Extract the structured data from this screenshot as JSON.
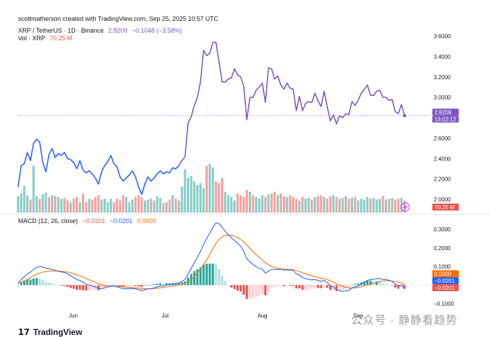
{
  "header": {
    "caption": "scottmatherson created with TradingView.com, Sep 25, 2025 10:57 UTC"
  },
  "legend": {
    "symbol": "XRP / TetherUS · 1D · Binance",
    "price": "2.8209",
    "change": "−0.1048 (−3.58%)",
    "volume_label": "Vol · XRP",
    "volume_value": "70.25 M",
    "macd_label": "MACD (12, 26, close)",
    "macd_hist": "−0.0201",
    "macd_line": "−0.0201",
    "macd_signal": "0.0000"
  },
  "colors": {
    "price_up": "#7e57c2",
    "price_down": "#2962ff",
    "vol_up": "#26a69a",
    "vol_down": "#ef5350",
    "macd_line": "#2962ff",
    "signal_line": "#ff6d00",
    "hist_up": "#26a69a",
    "hist_down": "#ef5350"
  },
  "badges": {
    "price_value": "2.8209",
    "countdown": "13:02:12",
    "volume_value": "70.25 M",
    "macd_signal": "0.0000",
    "macd_line": "−0.0201",
    "macd_hist": "−0.0201"
  },
  "footer": {
    "brand": "TradingView",
    "watermark": "公众号 · 静静看趋势"
  },
  "chart_data": [
    {
      "type": "line",
      "title": "XRP / TetherUS · 1D · Binance",
      "y_ticks": [
        "2.0000",
        "2.2000",
        "2.4000",
        "2.6000",
        "2.8000",
        "3.0000",
        "3.2000",
        "3.4000",
        "3.6000"
      ],
      "ylim": [
        1.93,
        3.68
      ],
      "x_ticks": [
        "Jun",
        "Jul",
        "Aug",
        "Sep"
      ],
      "x_tick_index": [
        18,
        48,
        79,
        110
      ],
      "last_price": 2.8209,
      "values": [
        2.12,
        2.33,
        2.35,
        2.46,
        2.38,
        2.55,
        2.59,
        2.56,
        2.36,
        2.27,
        2.44,
        2.5,
        2.41,
        2.45,
        2.43,
        2.46,
        2.4,
        2.39,
        2.36,
        2.3,
        2.38,
        2.29,
        2.26,
        2.28,
        2.25,
        2.21,
        2.15,
        2.27,
        2.33,
        2.37,
        2.43,
        2.35,
        2.32,
        2.22,
        2.18,
        2.21,
        2.24,
        2.28,
        2.22,
        2.12,
        2.05,
        2.15,
        2.22,
        2.18,
        2.21,
        2.25,
        2.28,
        2.25,
        2.27,
        2.26,
        2.31,
        2.3,
        2.33,
        2.38,
        2.42,
        2.75,
        2.81,
        2.92,
        3.0,
        3.15,
        3.46,
        3.41,
        3.43,
        3.54,
        3.54,
        3.35,
        3.15,
        3.15,
        3.18,
        3.19,
        3.28,
        3.22,
        3.2,
        3.11,
        2.78,
        3.0,
        3.0,
        3.07,
        3.1,
        3.14,
        2.95,
        3.29,
        3.28,
        3.18,
        3.21,
        3.12,
        3.08,
        3.14,
        3.09,
        3.08,
        2.87,
        3.01,
        2.87,
        2.94,
        2.96,
        2.95,
        3.04,
        2.97,
        2.91,
        3.06,
        2.91,
        2.77,
        2.83,
        2.74,
        2.82,
        2.8,
        2.84,
        2.83,
        2.96,
        2.92,
        2.97,
        3.04,
        3.08,
        3.12,
        3.02,
        3.02,
        3.06,
        3.07,
        3.0,
        3.0,
        2.97,
        2.98,
        2.86,
        2.84,
        2.93,
        2.82
      ]
    },
    {
      "type": "bar",
      "title": "Vol · XRP",
      "unit": "M XRP",
      "last_value": 70.25,
      "values": [
        95,
        110,
        155,
        100,
        75,
        270,
        95,
        80,
        105,
        115,
        90,
        100,
        95,
        90,
        80,
        85,
        70,
        60,
        80,
        90,
        60,
        110,
        60,
        80,
        75,
        90,
        100,
        75,
        80,
        60,
        80,
        60,
        80,
        70,
        100,
        90,
        60,
        75,
        90,
        100,
        90,
        70,
        75,
        80,
        70,
        95,
        85,
        55,
        60,
        75,
        100,
        80,
        70,
        150,
        250,
        200,
        210,
        180,
        160,
        170,
        140,
        270,
        280,
        260,
        180,
        170,
        200,
        120,
        100,
        90,
        70,
        110,
        100,
        90,
        130,
        120,
        100,
        90,
        80,
        100,
        90,
        105,
        110,
        120,
        100,
        110,
        95,
        90,
        100,
        90,
        80,
        70,
        90,
        80,
        85,
        75,
        90,
        95,
        100,
        90,
        80,
        95,
        100,
        90,
        80,
        85,
        95,
        80,
        85,
        90,
        70,
        80,
        75,
        90,
        80,
        85,
        75,
        80,
        95,
        75,
        80,
        85,
        75,
        80,
        85,
        70
      ],
      "up": [
        1,
        1,
        1,
        1,
        0,
        1,
        1,
        0,
        1,
        1,
        0,
        1,
        0,
        1,
        1,
        0,
        0,
        1,
        0,
        0,
        1,
        0,
        0,
        1,
        0,
        0,
        0,
        1,
        1,
        1,
        1,
        0,
        0,
        0,
        0,
        1,
        1,
        1,
        0,
        0,
        0,
        1,
        1,
        0,
        1,
        1,
        1,
        0,
        1,
        0,
        1,
        0,
        1,
        1,
        1,
        1,
        1,
        1,
        1,
        1,
        1,
        0,
        1,
        1,
        0,
        0,
        0,
        1,
        1,
        1,
        1,
        0,
        0,
        0,
        0,
        1,
        0,
        1,
        1,
        1,
        0,
        1,
        0,
        0,
        1,
        0,
        0,
        1,
        0,
        0,
        0,
        1,
        0,
        1,
        1,
        0,
        1,
        0,
        0,
        1,
        0,
        0,
        1,
        0,
        1,
        0,
        1,
        0,
        1,
        0,
        1,
        1,
        1,
        1,
        0,
        1,
        1,
        1,
        0,
        1,
        0,
        1,
        0,
        0,
        1,
        0
      ]
    },
    {
      "type": "line",
      "title": "MACD (12, 26, close)",
      "y_ticks": [
        "−0.1000",
        "0.1000",
        "0.2000",
        "0.3000"
      ],
      "ylim": [
        -0.13,
        0.37
      ],
      "series": [
        {
          "name": "MACD",
          "last": -0.0201,
          "values": [
            0.01,
            0.03,
            0.045,
            0.06,
            0.07,
            0.085,
            0.095,
            0.1,
            0.098,
            0.09,
            0.088,
            0.085,
            0.08,
            0.075,
            0.07,
            0.068,
            0.06,
            0.05,
            0.04,
            0.03,
            0.025,
            0.015,
            0.005,
            0.0,
            -0.005,
            -0.01,
            -0.02,
            -0.02,
            -0.015,
            -0.01,
            -0.005,
            -0.005,
            -0.01,
            -0.015,
            -0.02,
            -0.02,
            -0.02,
            -0.018,
            -0.02,
            -0.025,
            -0.03,
            -0.025,
            -0.02,
            -0.02,
            -0.015,
            -0.01,
            -0.005,
            -0.005,
            0.0,
            0.002,
            0.005,
            0.008,
            0.012,
            0.02,
            0.03,
            0.06,
            0.09,
            0.12,
            0.15,
            0.18,
            0.22,
            0.25,
            0.28,
            0.31,
            0.335,
            0.33,
            0.31,
            0.29,
            0.27,
            0.255,
            0.24,
            0.225,
            0.21,
            0.18,
            0.14,
            0.125,
            0.11,
            0.1,
            0.09,
            0.085,
            0.065,
            0.075,
            0.085,
            0.085,
            0.085,
            0.085,
            0.08,
            0.082,
            0.08,
            0.078,
            0.06,
            0.055,
            0.04,
            0.035,
            0.03,
            0.028,
            0.03,
            0.025,
            0.02,
            0.025,
            0.015,
            -0.005,
            -0.01,
            -0.025,
            -0.03,
            -0.035,
            -0.03,
            -0.03,
            -0.015,
            -0.01,
            -0.005,
            0.005,
            0.015,
            0.025,
            0.03,
            0.03,
            0.035,
            0.035,
            0.03,
            0.03,
            0.025,
            0.02,
            0.005,
            -0.005,
            0.0,
            -0.0201
          ]
        },
        {
          "name": "Signal",
          "last": 0.0,
          "values": [
            0.01,
            0.015,
            0.02,
            0.03,
            0.04,
            0.05,
            0.058,
            0.065,
            0.07,
            0.073,
            0.075,
            0.076,
            0.076,
            0.075,
            0.074,
            0.072,
            0.07,
            0.066,
            0.06,
            0.055,
            0.05,
            0.043,
            0.035,
            0.028,
            0.021,
            0.015,
            0.008,
            0.002,
            -0.003,
            -0.005,
            -0.006,
            -0.006,
            -0.007,
            -0.008,
            -0.01,
            -0.012,
            -0.013,
            -0.014,
            -0.015,
            -0.017,
            -0.019,
            -0.02,
            -0.02,
            -0.02,
            -0.019,
            -0.017,
            -0.015,
            -0.013,
            -0.01,
            -0.008,
            -0.005,
            -0.002,
            0.001,
            0.005,
            0.01,
            0.02,
            0.03,
            0.045,
            0.065,
            0.085,
            0.11,
            0.135,
            0.165,
            0.195,
            0.225,
            0.245,
            0.26,
            0.268,
            0.27,
            0.268,
            0.262,
            0.255,
            0.245,
            0.232,
            0.215,
            0.198,
            0.18,
            0.163,
            0.148,
            0.135,
            0.12,
            0.11,
            0.1,
            0.095,
            0.09,
            0.088,
            0.086,
            0.085,
            0.084,
            0.083,
            0.078,
            0.073,
            0.066,
            0.06,
            0.054,
            0.049,
            0.045,
            0.041,
            0.037,
            0.034,
            0.03,
            0.022,
            0.015,
            0.007,
            0.0,
            -0.007,
            -0.012,
            -0.016,
            -0.016,
            -0.015,
            -0.013,
            -0.009,
            -0.004,
            0.001,
            0.006,
            0.01,
            0.015,
            0.019,
            0.021,
            0.023,
            0.023,
            0.022,
            0.019,
            0.015,
            0.012,
            0.0
          ]
        },
        {
          "name": "Histogram",
          "last": -0.0201,
          "values": [
            0.0,
            0.015,
            0.025,
            0.03,
            0.03,
            0.035,
            0.037,
            0.035,
            0.028,
            0.017,
            0.013,
            0.009,
            0.004,
            0.0,
            -0.004,
            -0.004,
            -0.01,
            -0.016,
            -0.02,
            -0.025,
            -0.025,
            -0.028,
            -0.03,
            -0.028,
            -0.026,
            -0.025,
            -0.028,
            -0.022,
            -0.012,
            -0.005,
            0.001,
            0.001,
            -0.003,
            -0.007,
            -0.01,
            -0.008,
            -0.007,
            -0.004,
            -0.005,
            -0.008,
            -0.011,
            -0.005,
            0.0,
            0.0,
            0.004,
            0.007,
            0.01,
            0.008,
            0.01,
            0.01,
            0.01,
            0.01,
            0.011,
            0.015,
            0.02,
            0.04,
            0.06,
            0.075,
            0.085,
            0.095,
            0.11,
            0.115,
            0.115,
            0.115,
            0.11,
            0.085,
            0.05,
            0.022,
            0.0,
            -0.013,
            -0.022,
            -0.03,
            -0.035,
            -0.052,
            -0.075,
            -0.073,
            -0.07,
            -0.063,
            -0.058,
            -0.05,
            -0.055,
            -0.035,
            -0.015,
            -0.01,
            -0.005,
            -0.003,
            -0.006,
            -0.003,
            -0.004,
            -0.005,
            -0.018,
            -0.018,
            -0.026,
            -0.025,
            -0.024,
            -0.021,
            -0.015,
            -0.016,
            -0.017,
            -0.009,
            -0.015,
            -0.027,
            -0.025,
            -0.032,
            -0.03,
            -0.028,
            -0.018,
            -0.014,
            0.001,
            0.005,
            0.008,
            0.014,
            0.019,
            0.024,
            0.024,
            0.02,
            0.02,
            0.016,
            0.009,
            0.007,
            0.002,
            -0.002,
            -0.014,
            -0.02,
            -0.012,
            -0.0201
          ]
        }
      ]
    }
  ]
}
